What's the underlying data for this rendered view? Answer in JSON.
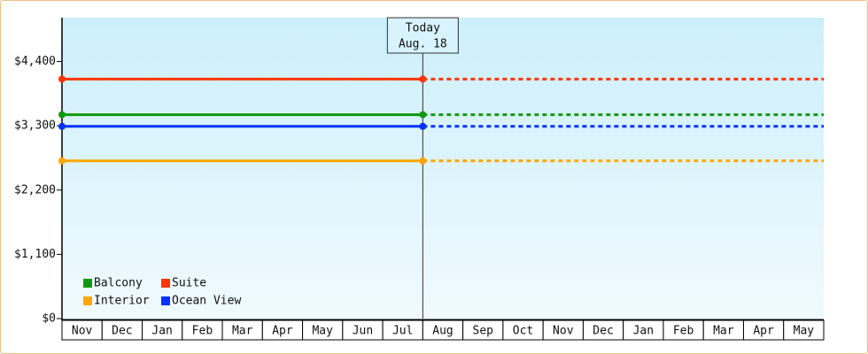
{
  "chart_data": {
    "type": "line",
    "categories": [
      "Nov",
      "Dec",
      "Jan",
      "Feb",
      "Mar",
      "Apr",
      "May",
      "Jun",
      "Jul",
      "Aug",
      "Sep",
      "Oct",
      "Nov",
      "Dec",
      "Jan",
      "Feb",
      "Mar",
      "Apr",
      "May"
    ],
    "series": [
      {
        "name": "Balcony",
        "color": "#119911",
        "values": [
          3490,
          3490,
          3490,
          3490,
          3490,
          3490,
          3490,
          3490,
          3490,
          3490,
          null,
          null,
          null,
          null,
          null,
          null,
          null,
          null,
          null
        ]
      },
      {
        "name": "Suite",
        "color": "#ff3300",
        "values": [
          4100,
          4100,
          4100,
          4100,
          4100,
          4100,
          4100,
          4100,
          4100,
          4100,
          null,
          null,
          null,
          null,
          null,
          null,
          null,
          null,
          null
        ]
      },
      {
        "name": "Interior",
        "color": "#ffa500",
        "values": [
          2700,
          2700,
          2700,
          2700,
          2700,
          2700,
          2700,
          2700,
          2700,
          2700,
          null,
          null,
          null,
          null,
          null,
          null,
          null,
          null,
          null
        ]
      },
      {
        "name": "Ocean View",
        "color": "#0033ff",
        "values": [
          3290,
          3290,
          3290,
          3290,
          3290,
          3290,
          3290,
          3290,
          3290,
          3290,
          null,
          null,
          null,
          null,
          null,
          null,
          null,
          null,
          null
        ]
      }
    ],
    "annotation": [
      "Today",
      "Aug. 18"
    ],
    "ylim": [
      0,
      5150
    ],
    "yticks": [
      {
        "value": 0,
        "label": "$0"
      },
      {
        "value": 1100,
        "label": "$1,100"
      },
      {
        "value": 2200,
        "label": "$2,200"
      },
      {
        "value": 3300,
        "label": "$3,300"
      },
      {
        "value": 4400,
        "label": "$4,400"
      }
    ],
    "legend": "bottom-left"
  }
}
